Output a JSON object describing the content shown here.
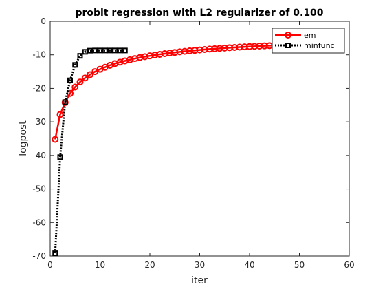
{
  "chart_data": {
    "type": "line",
    "title": "probit regression with L2 regularizer of 0.100",
    "xlabel": "iter",
    "ylabel": "logpost",
    "xlim": [
      0,
      60
    ],
    "ylim": [
      -70,
      0
    ],
    "xticks": [
      0,
      10,
      20,
      30,
      40,
      50,
      60
    ],
    "yticks": [
      0,
      -10,
      -20,
      -30,
      -40,
      -50,
      -60,
      -70
    ],
    "grid": false,
    "legend_position": "top-right",
    "series": [
      {
        "name": "em",
        "color": "#ff0000",
        "line_style": "solid",
        "marker": "circle",
        "x": [
          1,
          2,
          3,
          4,
          5,
          6,
          7,
          8,
          9,
          10,
          11,
          12,
          13,
          14,
          15,
          16,
          17,
          18,
          19,
          20,
          21,
          22,
          23,
          24,
          25,
          26,
          27,
          28,
          29,
          30,
          31,
          32,
          33,
          34,
          35,
          36,
          37,
          38,
          39,
          40,
          41,
          42,
          43,
          44,
          45,
          46,
          47
        ],
        "y": [
          -35.2,
          -27.8,
          -24.2,
          -21.5,
          -19.6,
          -18.1,
          -16.9,
          -15.9,
          -15.0,
          -14.3,
          -13.7,
          -13.1,
          -12.6,
          -12.2,
          -11.8,
          -11.45,
          -11.1,
          -10.8,
          -10.55,
          -10.3,
          -10.05,
          -9.85,
          -9.65,
          -9.45,
          -9.28,
          -9.1,
          -8.95,
          -8.8,
          -8.67,
          -8.54,
          -8.42,
          -8.3,
          -8.19,
          -8.08,
          -7.98,
          -7.88,
          -7.79,
          -7.7,
          -7.62,
          -7.54,
          -7.46,
          -7.39,
          -7.32,
          -7.25,
          -7.19,
          -7.13,
          -7.07
        ]
      },
      {
        "name": "minfunc",
        "color": "#000000",
        "line_style": "dotted",
        "marker": "square",
        "x": [
          1,
          2,
          3,
          4,
          5,
          6,
          7,
          8,
          9,
          10,
          11,
          12,
          13,
          14,
          15
        ],
        "y": [
          -69.2,
          -40.5,
          -24.1,
          -17.6,
          -13.0,
          -10.3,
          -9.1,
          -8.75,
          -8.7,
          -8.7,
          -8.7,
          -8.7,
          -8.7,
          -8.7,
          -8.7
        ]
      }
    ]
  }
}
